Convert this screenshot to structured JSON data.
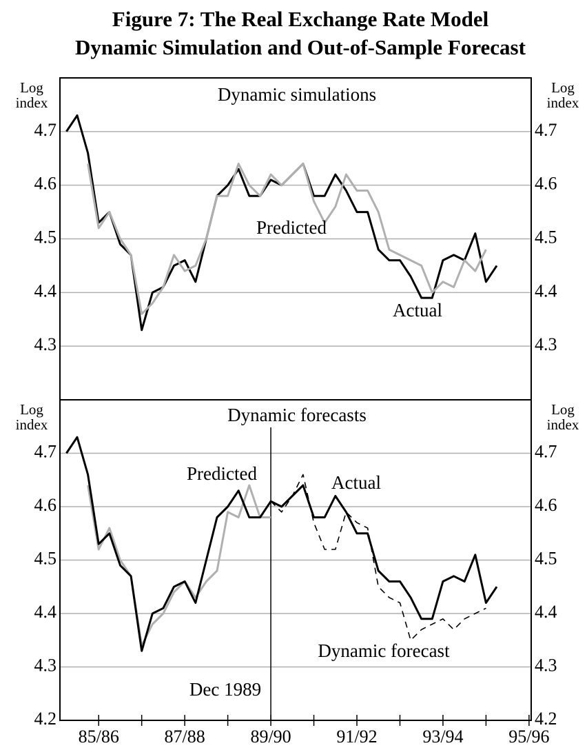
{
  "figure_title": [
    "Figure 7: The Real Exchange Rate Model",
    "Dynamic Simulation and Out-of-Sample Forecast"
  ],
  "chart_data": [
    {
      "type": "line",
      "title": "Dynamic simulations",
      "ylabel": [
        "Log",
        "index"
      ],
      "y2label": [
        "Log",
        "index"
      ],
      "x": [
        1985.25,
        1985.5,
        1985.75,
        1986,
        1986.25,
        1986.5,
        1986.75,
        1987,
        1987.25,
        1987.5,
        1987.75,
        1988,
        1988.25,
        1988.5,
        1988.75,
        1989,
        1989.25,
        1989.5,
        1989.75,
        1990,
        1990.25,
        1990.5,
        1990.75,
        1991,
        1991.25,
        1991.5,
        1991.75,
        1992,
        1992.25,
        1992.5,
        1992.75,
        1993,
        1993.25,
        1993.5,
        1993.75,
        1994,
        1994.25,
        1994.5,
        1994.75,
        1995,
        1995.25
      ],
      "xlim": [
        1985.1,
        1996.05
      ],
      "ylim": [
        4.2,
        4.8
      ],
      "yticks": [
        4.3,
        4.4,
        4.5,
        4.6,
        4.7
      ],
      "y2lim": [
        4.2,
        4.8
      ],
      "y2ticks": [
        4.3,
        4.4,
        4.5,
        4.6,
        4.7
      ],
      "grid": true,
      "series": [
        {
          "name": "Actual",
          "color": "#000000",
          "values": [
            4.7,
            4.73,
            4.66,
            4.53,
            4.55,
            4.49,
            4.47,
            4.33,
            4.4,
            4.41,
            4.45,
            4.46,
            4.42,
            4.5,
            4.58,
            4.6,
            4.63,
            4.58,
            4.58,
            4.61,
            4.6,
            4.62,
            4.64,
            4.58,
            4.58,
            4.62,
            4.59,
            4.55,
            4.55,
            4.48,
            4.46,
            4.46,
            4.43,
            4.39,
            4.39,
            4.46,
            4.47,
            4.46,
            4.51,
            4.42,
            4.45
          ]
        },
        {
          "name": "Predicted",
          "color": "#b0b0b0",
          "values": [
            null,
            null,
            4.64,
            4.52,
            4.55,
            4.5,
            4.47,
            4.36,
            4.38,
            4.41,
            4.47,
            4.44,
            4.45,
            4.5,
            4.58,
            4.58,
            4.64,
            4.6,
            4.58,
            4.62,
            4.6,
            4.62,
            4.64,
            4.57,
            4.53,
            4.56,
            4.62,
            4.59,
            4.59,
            4.55,
            4.48,
            4.47,
            4.46,
            4.45,
            4.4,
            4.42,
            4.41,
            4.46,
            4.44,
            4.48,
            null
          ]
        }
      ]
    },
    {
      "type": "line",
      "title": "Dynamic forecasts",
      "ylabel": [
        "Log",
        "index"
      ],
      "y2label": [
        "Log",
        "index"
      ],
      "x": [
        1985.25,
        1985.5,
        1985.75,
        1986,
        1986.25,
        1986.5,
        1986.75,
        1987,
        1987.25,
        1987.5,
        1987.75,
        1988,
        1988.25,
        1988.5,
        1988.75,
        1989,
        1989.25,
        1989.5,
        1989.75,
        1990,
        1990.25,
        1990.5,
        1990.75,
        1991,
        1991.25,
        1991.5,
        1991.75,
        1992,
        1992.25,
        1992.5,
        1992.75,
        1993,
        1993.25,
        1993.5,
        1993.75,
        1994,
        1994.25,
        1994.5,
        1994.75,
        1995,
        1995.25
      ],
      "xlim": [
        1985.1,
        1996.05
      ],
      "ylim": [
        4.2,
        4.8
      ],
      "yticks": [
        4.2,
        4.3,
        4.4,
        4.5,
        4.6,
        4.7
      ],
      "y2lim": [
        4.2,
        4.8
      ],
      "y2ticks": [
        4.2,
        4.3,
        4.4,
        4.5,
        4.6,
        4.7
      ],
      "grid": true,
      "xticks": [
        {
          "value": 1986,
          "label": "85/86"
        },
        {
          "value": 1988,
          "label": "87/88"
        },
        {
          "value": 1990,
          "label": "89/90"
        },
        {
          "value": 1992,
          "label": "91/92"
        },
        {
          "value": 1994,
          "label": "93/94"
        },
        {
          "value": 1996,
          "label": "95/96"
        }
      ],
      "xminorticks": [
        1987,
        1989,
        1991,
        1993,
        1995
      ],
      "vline": {
        "value": 1990,
        "label": "Dec 1989"
      },
      "series": [
        {
          "name": "Predicted",
          "color": "#b0b0b0",
          "values": [
            null,
            null,
            4.64,
            4.52,
            4.56,
            4.5,
            4.47,
            4.34,
            4.38,
            4.4,
            4.44,
            4.46,
            4.43,
            4.46,
            4.48,
            4.59,
            4.58,
            4.64,
            4.58,
            4.58,
            null,
            null,
            null,
            null,
            null,
            null,
            null,
            null,
            null,
            null,
            null,
            null,
            null,
            null,
            null,
            null,
            null,
            null,
            null,
            null,
            null
          ]
        },
        {
          "name": "Actual",
          "color": "#000000",
          "values": [
            4.7,
            4.73,
            4.66,
            4.53,
            4.55,
            4.49,
            4.47,
            4.33,
            4.4,
            4.41,
            4.45,
            4.46,
            4.42,
            4.5,
            4.58,
            4.6,
            4.63,
            4.58,
            4.58,
            4.61,
            4.6,
            4.62,
            4.64,
            4.58,
            4.58,
            4.62,
            4.59,
            4.55,
            4.55,
            4.48,
            4.46,
            4.46,
            4.43,
            4.39,
            4.39,
            4.46,
            4.47,
            4.46,
            4.51,
            4.42,
            4.45
          ]
        },
        {
          "name": "Dynamic forecast",
          "color": "#000000",
          "dashed": true,
          "values": [
            null,
            null,
            null,
            null,
            null,
            null,
            null,
            null,
            null,
            null,
            null,
            null,
            null,
            null,
            null,
            null,
            null,
            null,
            null,
            4.61,
            4.59,
            4.62,
            4.66,
            4.57,
            4.52,
            4.52,
            4.59,
            4.57,
            4.56,
            4.45,
            4.43,
            4.42,
            4.35,
            4.37,
            4.38,
            4.39,
            4.37,
            4.39,
            4.4,
            4.41,
            null
          ]
        }
      ]
    }
  ]
}
